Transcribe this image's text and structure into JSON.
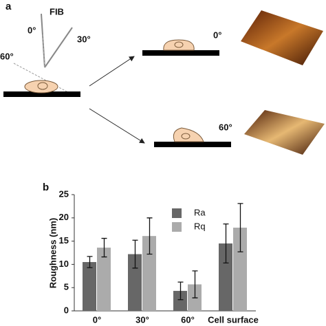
{
  "panel_a": {
    "label": "a",
    "beam": "FIB",
    "tilt_angles": [
      "0°",
      "30°",
      "60°"
    ],
    "result_angles": [
      "0°",
      "60°"
    ]
  },
  "panel_b_label": "b",
  "chart_data": {
    "type": "bar",
    "y_label": "Roughness (nm)",
    "categories": [
      "0°",
      "30°",
      "60°",
      "Cell surface"
    ],
    "series": [
      {
        "name": "Ra",
        "color": "#676767",
        "values": [
          10.5,
          12.2,
          4.3,
          14.5
        ],
        "errors": [
          1.2,
          3.0,
          1.9,
          4.2
        ]
      },
      {
        "name": "Rq",
        "color": "#ababab",
        "values": [
          13.6,
          16.1,
          5.7,
          17.9
        ],
        "errors": [
          2.0,
          3.9,
          2.9,
          5.2
        ]
      }
    ],
    "ylim": [
      0,
      25
    ],
    "yticks": [
      0,
      5,
      10,
      15,
      20,
      25
    ]
  }
}
